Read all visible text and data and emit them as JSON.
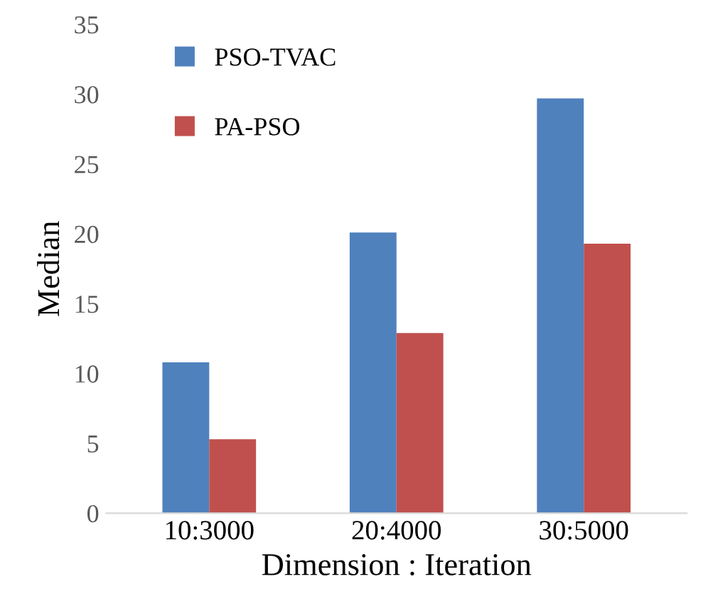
{
  "chart_data": {
    "type": "bar",
    "xlabel": "Dimension : Iteration",
    "ylabel": "Median",
    "categories": [
      "10:3000",
      "20:4000",
      "30:5000"
    ],
    "series": [
      {
        "name": "PSO-TVAC",
        "color": "#4f81bd",
        "values": [
          10.8,
          20.1,
          29.7
        ]
      },
      {
        "name": "PA-PSO",
        "color": "#c0504d",
        "values": [
          5.3,
          12.9,
          19.3
        ]
      }
    ],
    "ylim": [
      0,
      35
    ],
    "yticks": [
      0,
      5,
      10,
      15,
      20,
      25,
      30,
      35
    ],
    "grid": false,
    "legend": "top left"
  }
}
